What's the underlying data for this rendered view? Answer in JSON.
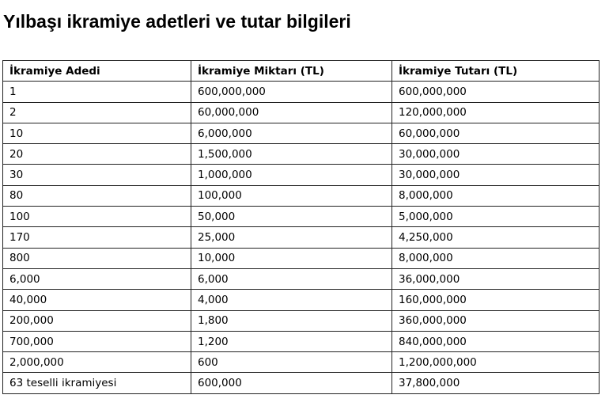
{
  "title": "Yılbaşı ikramiye adetleri ve tutar bilgileri",
  "table": {
    "headers": [
      "İkramiye Adedi",
      "İkramiye Miktarı (TL)",
      "İkramiye Tutarı (TL)"
    ],
    "rows": [
      [
        "1",
        "600,000,000",
        "600,000,000"
      ],
      [
        "2",
        "60,000,000",
        "120,000,000"
      ],
      [
        "10",
        "6,000,000",
        "60,000,000"
      ],
      [
        "20",
        "1,500,000",
        "30,000,000"
      ],
      [
        "30",
        "1,000,000",
        "30,000,000"
      ],
      [
        "80",
        "100,000",
        "8,000,000"
      ],
      [
        "100",
        "50,000",
        "5,000,000"
      ],
      [
        "170",
        "25,000",
        "4,250,000"
      ],
      [
        "800",
        "10,000",
        "8,000,000"
      ],
      [
        "6,000",
        "6,000",
        "36,000,000"
      ],
      [
        "40,000",
        "4,000",
        "160,000,000"
      ],
      [
        "200,000",
        "1,800",
        "360,000,000"
      ],
      [
        "700,000",
        "1,200",
        "840,000,000"
      ],
      [
        "2,000,000",
        "600",
        "1,200,000,000"
      ],
      [
        "63 teselli ikramiyesi",
        "600,000",
        "37,800,000"
      ]
    ]
  }
}
